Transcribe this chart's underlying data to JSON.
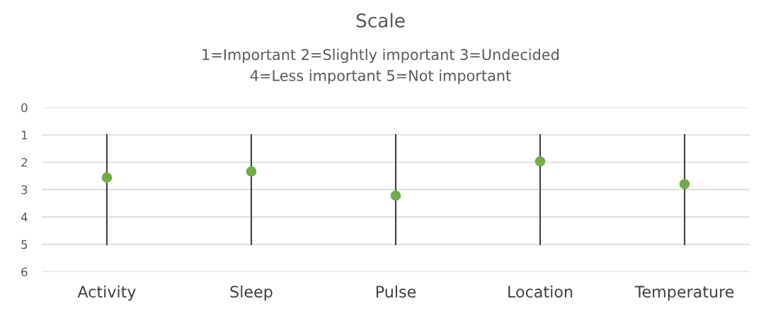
{
  "chart_data": {
    "type": "scatter",
    "title": "Scale",
    "subtitle": "1=Important 2=Slightly important 3=Undecided\n4=Less important 5=Not important",
    "categories": [
      "Activity",
      "Sleep",
      "Pulse",
      "Location",
      "Temperature"
    ],
    "series": [
      {
        "color": "#70ad47",
        "values": [
          2.56,
          2.34,
          3.22,
          1.97,
          2.8
        ],
        "errors": [
          [
            1,
            5
          ],
          [
            1,
            5
          ],
          [
            1,
            5
          ],
          [
            1,
            5
          ],
          [
            1,
            5
          ]
        ]
      }
    ],
    "ylim": [
      6,
      0
    ],
    "yticks": [
      0,
      1,
      2,
      3,
      4,
      5,
      6
    ],
    "grid": "y",
    "marker": "circle",
    "legend": false
  }
}
